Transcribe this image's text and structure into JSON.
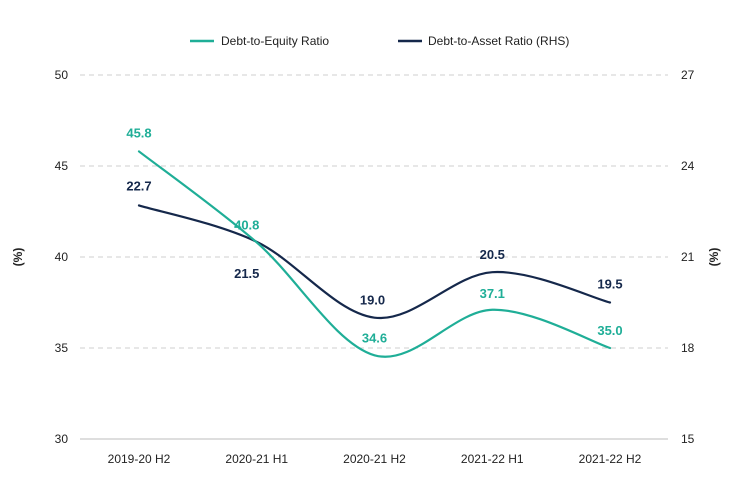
{
  "chart_data": {
    "type": "line",
    "categories": [
      "2019-20 H2",
      "2020-21 H1",
      "2020-21 H2",
      "2021-22 H1",
      "2021-22 H2"
    ],
    "series": [
      {
        "name": "Debt-to-Equity Ratio",
        "axis": "left",
        "color": "#1fae97",
        "values": [
          45.8,
          40.8,
          34.6,
          37.1,
          35.0
        ],
        "labels": [
          "45.8",
          "40.8",
          "34.6",
          "37.1",
          "35.0"
        ]
      },
      {
        "name": "Debt-to-Asset Ratio (RHS)",
        "axis": "right",
        "color": "#15284b",
        "values": [
          22.7,
          21.5,
          19.0,
          20.5,
          19.5
        ],
        "labels": [
          "22.7",
          "21.5",
          "19.0",
          "20.5",
          "19.5"
        ]
      }
    ],
    "ylabel": "(%)",
    "ylabel_right": "(%)",
    "ylim": [
      30,
      50
    ],
    "ylim_right": [
      15,
      27
    ],
    "yticks": [
      "30",
      "35",
      "40",
      "45",
      "50"
    ],
    "yticks_right": [
      "15",
      "18",
      "21",
      "24",
      "27"
    ],
    "grid": true,
    "legend_position": "top"
  }
}
